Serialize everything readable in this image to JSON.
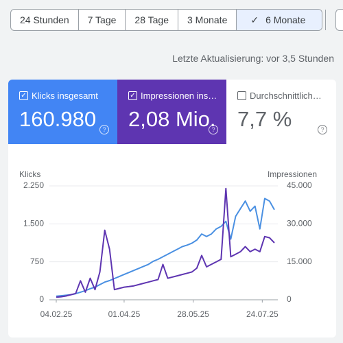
{
  "tabs": [
    "24 Stunden",
    "7 Tage",
    "28 Tage",
    "3 Monate",
    "6 Monate"
  ],
  "selected_tab": 4,
  "update_text": "Letzte Aktualisierung: vor 3,5 Stunden",
  "cards": [
    {
      "label": "Klicks insgesamt",
      "value": "160.980",
      "checked": true,
      "color": "#4285f4"
    },
    {
      "label": "Impressionen ins…",
      "value": "2,08 Mio.",
      "checked": true,
      "color": "#5e35b1"
    },
    {
      "label": "Durchschnittlich…",
      "value": "7,7 %",
      "checked": false,
      "color": "#ffffff"
    }
  ],
  "chart_data": {
    "type": "line",
    "ylabel": "Klicks",
    "y2label": "Impressionen",
    "x": [
      "04.02.25",
      "08.02.25",
      "12.02.25",
      "16.02.25",
      "20.02.25",
      "24.02.25",
      "28.02.25",
      "04.03.25",
      "08.03.25",
      "12.03.25",
      "16.03.25",
      "20.03.25",
      "24.03.25",
      "28.03.25",
      "01.04.25",
      "05.04.25",
      "09.04.25",
      "13.04.25",
      "17.04.25",
      "21.04.25",
      "25.04.25",
      "29.04.25",
      "03.05.25",
      "07.05.25",
      "11.05.25",
      "15.05.25",
      "19.05.25",
      "23.05.25",
      "27.05.25",
      "31.05.25",
      "04.06.25",
      "08.06.25",
      "12.06.25",
      "16.06.25",
      "20.06.25",
      "24.06.25",
      "28.06.25",
      "02.07.25",
      "06.07.25",
      "10.07.25",
      "14.07.25",
      "18.07.25",
      "22.07.25",
      "26.07.25",
      "30.07.25",
      "03.08.25"
    ],
    "xticks": [
      "04.02.25",
      "01.04.25",
      "28.05.25",
      "24.07.25"
    ],
    "ylim": [
      0,
      2250
    ],
    "yticks": [
      0,
      750,
      {
        "value": 1500,
        "label": "1.500"
      },
      {
        "value": 2250,
        "label": "2.250"
      }
    ],
    "y2lim": [
      0,
      45000
    ],
    "y2ticks": [
      0,
      {
        "value": 15000,
        "label": "15.000"
      },
      {
        "value": 30000,
        "label": "30.000"
      },
      {
        "value": 45000,
        "label": "45.000"
      }
    ],
    "grid": true,
    "series": [
      {
        "name": "Klicks",
        "color": "#4a90e2",
        "values": [
          70,
          80,
          90,
          100,
          120,
          150,
          180,
          220,
          250,
          300,
          350,
          380,
          420,
          460,
          500,
          540,
          580,
          620,
          660,
          700,
          760,
          800,
          850,
          900,
          950,
          1000,
          1050,
          1080,
          1120,
          1180,
          1300,
          1250,
          1300,
          1400,
          1450,
          1550,
          1200,
          1650,
          1800,
          1950,
          1750,
          1850,
          1400,
          2000,
          1950,
          1780
        ]
      },
      {
        "name": "Impressionen",
        "color": "#5e35b1",
        "axis": "y2",
        "values": [
          1000,
          1200,
          1500,
          2000,
          2500,
          7500,
          3000,
          8500,
          4000,
          11000,
          27500,
          20000,
          4000,
          4500,
          5000,
          5200,
          5500,
          6000,
          6500,
          7000,
          7500,
          8000,
          14000,
          8500,
          9000,
          9500,
          10000,
          10500,
          11000,
          12500,
          17500,
          13000,
          14000,
          15000,
          16000,
          44000,
          17000,
          18000,
          19000,
          21000,
          19000,
          20000,
          19000,
          25000,
          24500,
          22500
        ]
      }
    ]
  }
}
